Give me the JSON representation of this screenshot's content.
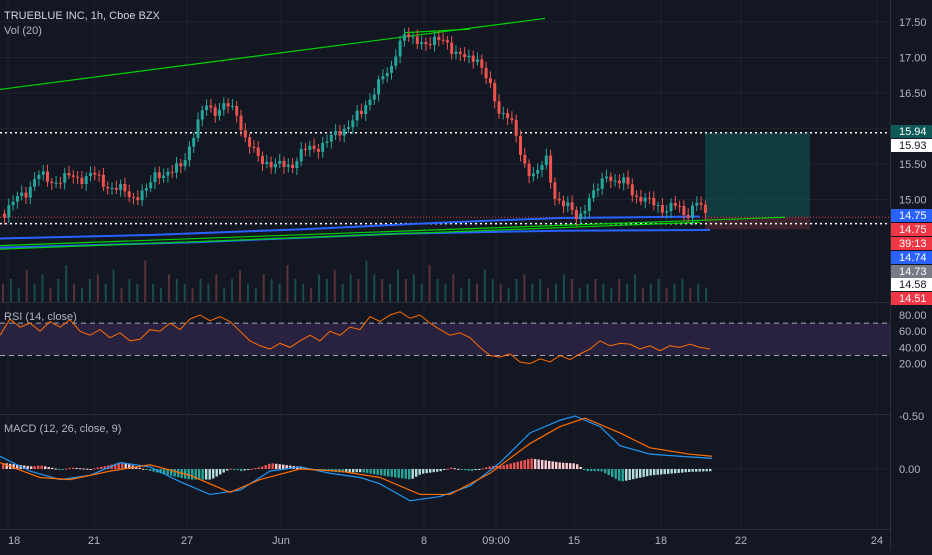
{
  "header": {
    "symbol_line": "TRUEBLUE INC, 1h, Cboe BZX",
    "vol_label": "Vol (20)"
  },
  "colors": {
    "background": "#131722",
    "grid": "#1e222d",
    "axis_text": "#b2b5be",
    "up": "#26a69a",
    "down": "#ef5350",
    "trend_green": "#00d400",
    "ma_blue": "#2962ff",
    "rsi_line": "#ff6d00",
    "rsi_band": "#3a2a5a",
    "macd_line": "#2196f3",
    "signal_line": "#ff6d00",
    "badge_blue": "#2962ff",
    "badge_red": "#f23645",
    "badge_gray": "#787b86",
    "badge_white": "#ffffff",
    "position_target": "#0f5959"
  },
  "price_axis": {
    "ticks": [
      "17.50",
      "17.00",
      "16.50",
      "16.00",
      "15.50",
      "15.00"
    ],
    "badges": [
      {
        "label": "15.94",
        "style": "teal"
      },
      {
        "label": "15.93",
        "style": "white"
      },
      {
        "label": "14.75",
        "style": "blue"
      },
      {
        "label": "14.75",
        "style": "red"
      },
      {
        "label": "39:13",
        "style": "red"
      },
      {
        "label": "14.74",
        "style": "blue"
      },
      {
        "label": "14.73",
        "style": "gray"
      },
      {
        "label": "14.58",
        "style": "white"
      },
      {
        "label": "14.51",
        "style": "red"
      }
    ]
  },
  "rsi": {
    "label": "RSI (14, close)",
    "ticks": [
      "80.00",
      "60.00",
      "40.00",
      "20.00"
    ],
    "upper": 70,
    "lower": 30
  },
  "macd": {
    "label": "MACD (12, 26, close, 9)",
    "ticks": [
      "0.00",
      "-0.50"
    ]
  },
  "time_axis": {
    "labels": [
      "18",
      "21",
      "27",
      "Jun",
      "8",
      "09:00",
      "15",
      "18",
      "22",
      "24"
    ]
  },
  "chart_data": [
    {
      "type": "candlestick",
      "title": "TRUEBLUE INC, 1h, Cboe BZX",
      "ylim": [
        14.4,
        17.7
      ],
      "x_labels": [
        "18",
        "21",
        "27",
        "Jun",
        "8",
        "09:00",
        "15",
        "18",
        "22",
        "24"
      ],
      "close_path": [
        [
          0,
          14.8
        ],
        [
          12,
          14.95
        ],
        [
          24,
          15.1
        ],
        [
          35,
          15.35
        ],
        [
          48,
          15.25
        ],
        [
          60,
          15.3
        ],
        [
          75,
          15.3
        ],
        [
          90,
          15.35
        ],
        [
          100,
          15.25
        ],
        [
          115,
          15.15
        ],
        [
          130,
          15.05
        ],
        [
          145,
          15.1
        ],
        [
          155,
          15.4
        ],
        [
          170,
          15.35
        ],
        [
          180,
          15.5
        ],
        [
          195,
          16.0
        ],
        [
          205,
          16.35
        ],
        [
          215,
          16.25
        ],
        [
          225,
          16.3
        ],
        [
          235,
          16.25
        ],
        [
          245,
          15.8
        ],
        [
          255,
          15.6
        ],
        [
          265,
          15.55
        ],
        [
          275,
          15.45
        ],
        [
          290,
          15.5
        ],
        [
          300,
          15.65
        ],
        [
          315,
          15.75
        ],
        [
          330,
          15.85
        ],
        [
          345,
          16.05
        ],
        [
          360,
          16.2
        ],
        [
          370,
          16.5
        ],
        [
          380,
          16.7
        ],
        [
          388,
          16.75
        ],
        [
          395,
          17.15
        ],
        [
          402,
          17.35
        ],
        [
          410,
          17.2
        ],
        [
          420,
          17.25
        ],
        [
          432,
          17.2
        ],
        [
          445,
          17.25
        ],
        [
          455,
          17.05
        ],
        [
          465,
          16.95
        ],
        [
          475,
          17.05
        ],
        [
          482,
          16.8
        ],
        [
          490,
          16.5
        ],
        [
          497,
          16.25
        ],
        [
          505,
          16.25
        ],
        [
          512,
          16.0
        ],
        [
          518,
          15.65
        ],
        [
          525,
          15.45
        ],
        [
          535,
          15.35
        ],
        [
          545,
          15.55
        ],
        [
          552,
          15.1
        ],
        [
          560,
          14.95
        ],
        [
          568,
          14.85
        ],
        [
          576,
          14.75
        ],
        [
          585,
          14.95
        ],
        [
          595,
          15.1
        ],
        [
          605,
          15.4
        ],
        [
          615,
          15.2
        ],
        [
          625,
          15.25
        ],
        [
          635,
          15.05
        ],
        [
          645,
          14.95
        ],
        [
          655,
          14.95
        ],
        [
          665,
          14.85
        ],
        [
          675,
          14.9
        ],
        [
          685,
          14.8
        ],
        [
          695,
          14.95
        ],
        [
          705,
          14.75
        ]
      ],
      "volume": [
        0.4,
        0.5,
        0.3,
        0.7,
        0.4,
        0.6,
        0.3,
        0.5,
        0.8,
        0.4,
        0.3,
        0.5,
        0.6,
        0.4,
        0.7,
        0.3,
        0.5,
        0.4,
        0.9,
        0.4,
        0.3,
        0.6,
        0.5,
        0.4,
        0.3,
        0.5,
        0.4,
        0.6,
        0.3,
        0.5,
        0.7,
        0.4,
        0.3,
        0.6,
        0.5,
        0.4,
        0.8,
        0.5,
        0.4,
        0.3,
        0.6,
        0.5,
        0.7,
        0.4,
        0.6,
        0.5,
        0.9,
        0.6,
        0.5,
        0.4,
        0.7,
        0.5,
        0.6,
        0.4,
        0.8,
        0.5,
        0.4,
        0.6,
        0.3,
        0.5,
        0.4,
        0.7,
        0.5,
        0.4,
        0.3,
        0.5,
        0.6,
        0.4,
        0.5,
        0.3,
        0.4,
        0.6,
        0.5,
        0.3,
        0.4,
        0.5,
        0.4,
        0.3,
        0.5,
        0.4,
        0.6,
        0.3,
        0.4,
        0.5,
        0.3,
        0.4,
        0.5,
        0.3,
        0.4,
        0.3
      ],
      "horizontal_levels": [
        15.94,
        14.66
      ],
      "last_price_line": 14.75,
      "trendlines": [
        {
          "from": [
            0,
            16.55
          ],
          "to": [
            545,
            17.55
          ],
          "color": "green"
        },
        {
          "from": [
            405,
            17.35
          ],
          "to": [
            470,
            17.4
          ],
          "color": "green"
        },
        {
          "from": [
            0,
            14.35
          ],
          "to": [
            785,
            14.75
          ],
          "color": "green"
        },
        {
          "from": [
            0,
            14.3
          ],
          "to": [
            700,
            14.68
          ],
          "color": "green"
        }
      ],
      "moving_averages": [
        {
          "color": "blue",
          "points": [
            [
              0,
              14.45
            ],
            [
              150,
              14.5
            ],
            [
              300,
              14.58
            ],
            [
              450,
              14.68
            ],
            [
              560,
              14.74
            ],
            [
              700,
              14.76
            ]
          ]
        },
        {
          "color": "blue",
          "points": [
            [
              0,
              14.32
            ],
            [
              200,
              14.4
            ],
            [
              400,
              14.52
            ],
            [
              560,
              14.56
            ],
            [
              710,
              14.57
            ]
          ]
        }
      ],
      "position": {
        "target": 15.94,
        "entry": 14.75,
        "stop": 14.58
      }
    },
    {
      "type": "line",
      "title": "RSI (14, close)",
      "ylim": [
        10,
        90
      ],
      "band": [
        30,
        70
      ],
      "path": [
        [
          0,
          55
        ],
        [
          10,
          75
        ],
        [
          20,
          65
        ],
        [
          30,
          70
        ],
        [
          40,
          60
        ],
        [
          50,
          72
        ],
        [
          60,
          65
        ],
        [
          70,
          74
        ],
        [
          80,
          60
        ],
        [
          90,
          55
        ],
        [
          100,
          62
        ],
        [
          110,
          52
        ],
        [
          120,
          58
        ],
        [
          130,
          48
        ],
        [
          140,
          50
        ],
        [
          150,
          62
        ],
        [
          160,
          60
        ],
        [
          170,
          70
        ],
        [
          180,
          62
        ],
        [
          190,
          75
        ],
        [
          200,
          80
        ],
        [
          210,
          73
        ],
        [
          220,
          78
        ],
        [
          230,
          72
        ],
        [
          240,
          60
        ],
        [
          250,
          48
        ],
        [
          260,
          42
        ],
        [
          270,
          38
        ],
        [
          280,
          45
        ],
        [
          290,
          40
        ],
        [
          300,
          48
        ],
        [
          310,
          55
        ],
        [
          320,
          48
        ],
        [
          330,
          60
        ],
        [
          340,
          55
        ],
        [
          350,
          65
        ],
        [
          360,
          62
        ],
        [
          370,
          78
        ],
        [
          380,
          72
        ],
        [
          390,
          80
        ],
        [
          400,
          84
        ],
        [
          410,
          76
        ],
        [
          420,
          80
        ],
        [
          430,
          70
        ],
        [
          440,
          62
        ],
        [
          450,
          55
        ],
        [
          460,
          58
        ],
        [
          470,
          52
        ],
        [
          480,
          40
        ],
        [
          490,
          30
        ],
        [
          500,
          28
        ],
        [
          510,
          32
        ],
        [
          520,
          22
        ],
        [
          530,
          20
        ],
        [
          540,
          26
        ],
        [
          550,
          22
        ],
        [
          560,
          30
        ],
        [
          570,
          25
        ],
        [
          580,
          32
        ],
        [
          590,
          38
        ],
        [
          600,
          48
        ],
        [
          610,
          42
        ],
        [
          620,
          45
        ],
        [
          630,
          44
        ],
        [
          640,
          38
        ],
        [
          650,
          42
        ],
        [
          660,
          36
        ],
        [
          670,
          42
        ],
        [
          680,
          40
        ],
        [
          690,
          44
        ],
        [
          700,
          40
        ],
        [
          710,
          38
        ]
      ]
    },
    {
      "type": "bar",
      "title": "MACD (12, 26, close, 9)",
      "ylim": [
        -0.55,
        0.35
      ],
      "macd_path": [
        [
          0,
          -0.12
        ],
        [
          30,
          0.02
        ],
        [
          60,
          0.1
        ],
        [
          90,
          0.06
        ],
        [
          120,
          -0.06
        ],
        [
          150,
          -0.02
        ],
        [
          180,
          0.12
        ],
        [
          210,
          0.24
        ],
        [
          240,
          0.2
        ],
        [
          270,
          0.02
        ],
        [
          300,
          -0.02
        ],
        [
          330,
          0.04
        ],
        [
          360,
          0.08
        ],
        [
          380,
          0.14
        ],
        [
          410,
          0.3
        ],
        [
          440,
          0.26
        ],
        [
          470,
          0.16
        ],
        [
          500,
          -0.06
        ],
        [
          530,
          -0.34
        ],
        [
          560,
          -0.46
        ],
        [
          575,
          -0.5
        ],
        [
          600,
          -0.4
        ],
        [
          620,
          -0.22
        ],
        [
          650,
          -0.14
        ],
        [
          680,
          -0.12
        ],
        [
          712,
          -0.1
        ]
      ],
      "signal_path": [
        [
          0,
          -0.06
        ],
        [
          40,
          0.08
        ],
        [
          70,
          0.1
        ],
        [
          110,
          0.02
        ],
        [
          150,
          -0.04
        ],
        [
          190,
          0.06
        ],
        [
          230,
          0.22
        ],
        [
          260,
          0.1
        ],
        [
          300,
          0.0
        ],
        [
          340,
          0.02
        ],
        [
          380,
          0.08
        ],
        [
          420,
          0.24
        ],
        [
          450,
          0.24
        ],
        [
          490,
          0.04
        ],
        [
          530,
          -0.24
        ],
        [
          560,
          -0.4
        ],
        [
          585,
          -0.48
        ],
        [
          620,
          -0.34
        ],
        [
          650,
          -0.2
        ],
        [
          690,
          -0.14
        ],
        [
          712,
          -0.12
        ]
      ]
    }
  ]
}
